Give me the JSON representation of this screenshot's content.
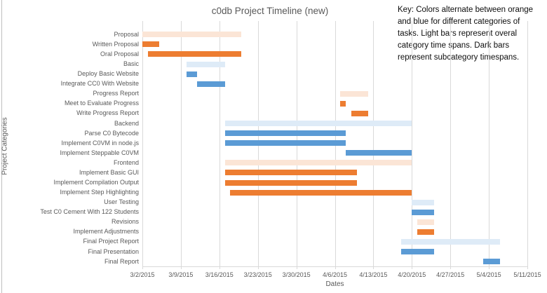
{
  "title": "c0db Project Timeline (new)",
  "key_note": {
    "lines": [
      "Key: Colors alternate between orange",
      "and blue for different categories of",
      "tasks. Light bars represent overal",
      "category time spans. Dark bars",
      "represent subcategory timespans."
    ]
  },
  "colors": {
    "orange_dark": "#ed7d31",
    "orange_light": "#fbe5d6",
    "blue_dark": "#5b9bd5",
    "blue_light": "#deebf7",
    "gridline": "#d9d9d9",
    "axis_text": "#595959",
    "title_text": "#595959",
    "key_text": "#0d0d0d"
  },
  "chart_data": {
    "type": "bar",
    "subtype": "gantt",
    "title": "c0db Project Timeline (new)",
    "xlabel": "Dates",
    "ylabel": "Project Categories",
    "grid": "vertical",
    "legend_position": "none",
    "x_axis": {
      "start": "3/2/2015",
      "end": "5/11/2015",
      "tick_interval_days": 7,
      "ticks": [
        "3/2/2015",
        "3/9/2015",
        "3/16/2015",
        "3/23/2015",
        "3/30/2015",
        "4/6/2015",
        "4/13/2015",
        "4/20/2015",
        "4/27/2015",
        "5/4/2015",
        "5/11/2015"
      ]
    },
    "tasks": [
      {
        "label": "Proposal",
        "start": "3/2/2015",
        "end": "3/20/2015",
        "color": "orange_light",
        "kind": "category"
      },
      {
        "label": "Written Proposal",
        "start": "3/2/2015",
        "end": "3/5/2015",
        "color": "orange_dark",
        "kind": "subcategory"
      },
      {
        "label": "Oral Proposal",
        "start": "3/3/2015",
        "end": "3/20/2015",
        "color": "orange_dark",
        "kind": "subcategory"
      },
      {
        "label": "Basic",
        "start": "3/10/2015",
        "end": "3/17/2015",
        "color": "blue_light",
        "kind": "category"
      },
      {
        "label": "Deploy Basic Website",
        "start": "3/10/2015",
        "end": "3/12/2015",
        "color": "blue_dark",
        "kind": "subcategory"
      },
      {
        "label": "Integrate CC0 With Website",
        "start": "3/12/2015",
        "end": "3/17/2015",
        "color": "blue_dark",
        "kind": "subcategory"
      },
      {
        "label": "Progress Report",
        "start": "4/7/2015",
        "end": "4/12/2015",
        "color": "orange_light",
        "kind": "category"
      },
      {
        "label": "Meet to Evaluate Progress",
        "start": "4/7/2015",
        "end": "4/8/2015",
        "color": "orange_dark",
        "kind": "subcategory"
      },
      {
        "label": "Write Progress Report",
        "start": "4/9/2015",
        "end": "4/12/2015",
        "color": "orange_dark",
        "kind": "subcategory"
      },
      {
        "label": "Backend",
        "start": "3/17/2015",
        "end": "4/20/2015",
        "color": "blue_light",
        "kind": "category"
      },
      {
        "label": "Parse C0 Bytecode",
        "start": "3/17/2015",
        "end": "4/8/2015",
        "color": "blue_dark",
        "kind": "subcategory"
      },
      {
        "label": "Implement C0VM in node.js",
        "start": "3/17/2015",
        "end": "4/8/2015",
        "color": "blue_dark",
        "kind": "subcategory"
      },
      {
        "label": "Implement Steppable C0VM",
        "start": "4/8/2015",
        "end": "4/20/2015",
        "color": "blue_dark",
        "kind": "subcategory"
      },
      {
        "label": "Frontend",
        "start": "3/17/2015",
        "end": "4/20/2015",
        "color": "orange_light",
        "kind": "category"
      },
      {
        "label": "Implement Basic GUI",
        "start": "3/17/2015",
        "end": "4/10/2015",
        "color": "orange_dark",
        "kind": "subcategory"
      },
      {
        "label": "Implement Compilation Output",
        "start": "3/17/2015",
        "end": "4/10/2015",
        "color": "orange_dark",
        "kind": "subcategory"
      },
      {
        "label": "Implement Step Highlighting",
        "start": "3/18/2015",
        "end": "4/20/2015",
        "color": "orange_dark",
        "kind": "subcategory"
      },
      {
        "label": "User Testing",
        "start": "4/20/2015",
        "end": "4/24/2015",
        "color": "blue_light",
        "kind": "category"
      },
      {
        "label": "Test C0 Cement With 122 Students",
        "start": "4/20/2015",
        "end": "4/24/2015",
        "color": "blue_dark",
        "kind": "subcategory"
      },
      {
        "label": "Revisions",
        "start": "4/21/2015",
        "end": "4/24/2015",
        "color": "orange_light",
        "kind": "category"
      },
      {
        "label": "Implement Adjustments",
        "start": "4/21/2015",
        "end": "4/24/2015",
        "color": "orange_dark",
        "kind": "subcategory"
      },
      {
        "label": "Final Project Report",
        "start": "4/18/2015",
        "end": "5/6/2015",
        "color": "blue_light",
        "kind": "category"
      },
      {
        "label": "Final Presentation",
        "start": "4/18/2015",
        "end": "4/24/2015",
        "color": "blue_dark",
        "kind": "subcategory"
      },
      {
        "label": "Final Report",
        "start": "5/3/2015",
        "end": "5/6/2015",
        "color": "blue_dark",
        "kind": "subcategory"
      }
    ]
  }
}
